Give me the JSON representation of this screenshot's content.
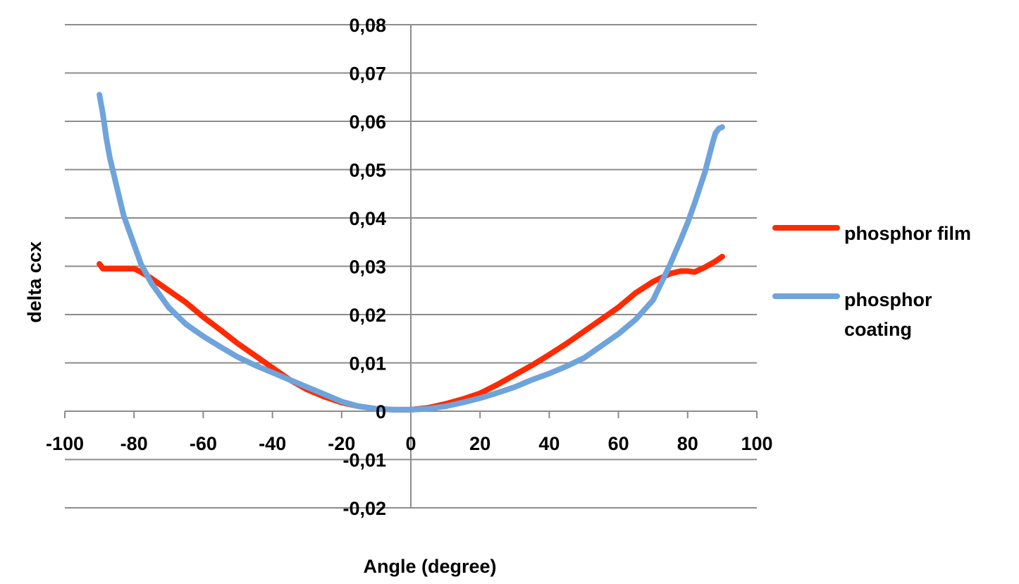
{
  "chart_data": {
    "type": "line",
    "title": "",
    "xlabel": "Angle (degree)",
    "ylabel": "delta ccx",
    "xlim": [
      -100,
      100
    ],
    "ylim": [
      -0.02,
      0.08
    ],
    "x_ticks": [
      -100,
      -80,
      -60,
      -40,
      -20,
      0,
      20,
      40,
      60,
      80,
      100
    ],
    "x_tick_labels": [
      "-100",
      "-80",
      "-60",
      "-40",
      "-20",
      "0",
      "20",
      "40",
      "60",
      "80",
      "100"
    ],
    "y_ticks": [
      -0.02,
      -0.01,
      0,
      0.01,
      0.02,
      0.03,
      0.04,
      0.05,
      0.06,
      0.07,
      0.08
    ],
    "y_tick_labels": [
      "-0,02",
      "-0,01",
      "0",
      "0,01",
      "0,02",
      "0,03",
      "0,04",
      "0,05",
      "0,06",
      "0,07",
      "0,08"
    ],
    "grid": true,
    "legend_position": "right",
    "series": [
      {
        "name": "phosphor film",
        "color": "#ff2a00",
        "x": [
          -90,
          -89,
          -85,
          -82,
          -80,
          -78,
          -75,
          -70,
          -65,
          -60,
          -55,
          -50,
          -45,
          -40,
          -35,
          -30,
          -25,
          -20,
          -15,
          -10,
          -5,
          0,
          5,
          10,
          15,
          20,
          25,
          30,
          35,
          40,
          45,
          50,
          55,
          60,
          65,
          70,
          75,
          78,
          80,
          82,
          85,
          88,
          90
        ],
        "y": [
          0.0305,
          0.0295,
          0.0295,
          0.0295,
          0.0295,
          0.0288,
          0.0275,
          0.025,
          0.0225,
          0.0195,
          0.0168,
          0.014,
          0.0115,
          0.009,
          0.0065,
          0.0045,
          0.003,
          0.0018,
          0.001,
          0.0005,
          0.0003,
          0.0003,
          0.0007,
          0.0015,
          0.0025,
          0.0037,
          0.0055,
          0.0075,
          0.0095,
          0.0117,
          0.014,
          0.0165,
          0.019,
          0.0215,
          0.0245,
          0.0268,
          0.0285,
          0.029,
          0.029,
          0.0288,
          0.0298,
          0.031,
          0.032
        ]
      },
      {
        "name": "phosphor coating",
        "color": "#6fa3dc",
        "x": [
          -90,
          -89,
          -88,
          -87,
          -85,
          -83,
          -80,
          -78,
          -75,
          -70,
          -65,
          -60,
          -55,
          -50,
          -45,
          -40,
          -35,
          -30,
          -25,
          -20,
          -15,
          -10,
          -5,
          0,
          5,
          10,
          15,
          20,
          25,
          30,
          35,
          40,
          45,
          50,
          55,
          60,
          65,
          70,
          75,
          78,
          80,
          82,
          85,
          87,
          88,
          89,
          90
        ],
        "y": [
          0.0655,
          0.0615,
          0.0565,
          0.0525,
          0.0465,
          0.0405,
          0.0345,
          0.0305,
          0.0265,
          0.0215,
          0.018,
          0.0155,
          0.0133,
          0.0112,
          0.0095,
          0.008,
          0.0065,
          0.005,
          0.0035,
          0.002,
          0.001,
          0.0005,
          0.0003,
          0.0003,
          0.0005,
          0.001,
          0.0018,
          0.0027,
          0.0038,
          0.005,
          0.0065,
          0.0078,
          0.0093,
          0.011,
          0.0135,
          0.016,
          0.019,
          0.023,
          0.0305,
          0.0355,
          0.039,
          0.043,
          0.0495,
          0.055,
          0.0575,
          0.0585,
          0.0588
        ]
      }
    ]
  }
}
